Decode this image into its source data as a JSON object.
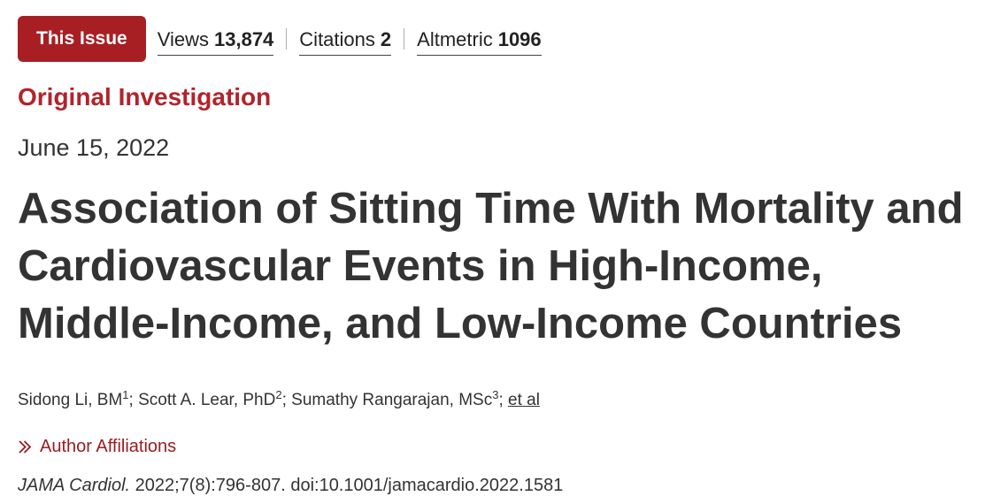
{
  "metrics_bar": {
    "issue_button": "This Issue",
    "views": {
      "label": "Views",
      "value": "13,874"
    },
    "citations": {
      "label": "Citations",
      "value": "2"
    },
    "altmetric": {
      "label": "Altmetric",
      "value": "1096"
    }
  },
  "article": {
    "type": "Original Investigation",
    "date": "June 15, 2022",
    "title": "Association of Sitting Time With Mortality and Cardiovascular Events in High-Income, Middle-Income, and Low-Income Countries",
    "authors": [
      {
        "name": "Sidong Li, BM",
        "sup": "1",
        "sep": "; "
      },
      {
        "name": "Scott A. Lear, PhD",
        "sup": "2",
        "sep": "; "
      },
      {
        "name": "Sumathy Rangarajan, MSc",
        "sup": "3",
        "sep": "; "
      }
    ],
    "et_al": "et al",
    "affiliations_label": "Author Affiliations",
    "citation": {
      "journal": "JAMA Cardiol.",
      "details": " 2022;7(8):796-807. doi:10.1001/jamacardio.2022.1581"
    }
  },
  "colors": {
    "accent": "#a81f23",
    "article_type": "#b2232b",
    "text": "#333333"
  },
  "icons": {
    "affiliations": "double-chevron-right-icon"
  }
}
